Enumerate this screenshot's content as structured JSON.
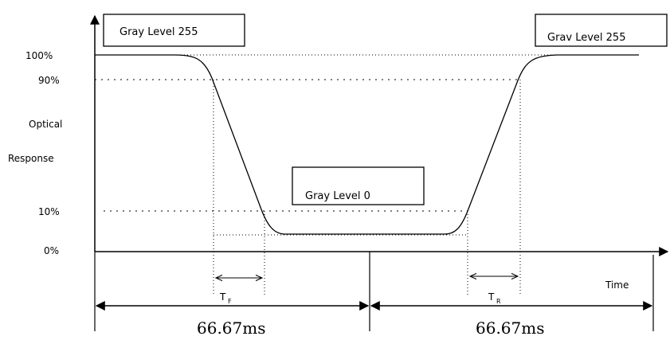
{
  "boxes": {
    "left": "Gray Level 255",
    "middle": "Gray Level 0",
    "right": "Grav Level 255"
  },
  "y_axis": {
    "label_line1": "Optical",
    "label_line2": "Response",
    "ticks": [
      "100%",
      "90%",
      "10%",
      "0%"
    ]
  },
  "x_axis": {
    "label": "Time"
  },
  "intervals": {
    "fall_symbol": "T",
    "fall_sub": "F",
    "rise_symbol": "T",
    "rise_sub": "R",
    "period_left": "66.67ms",
    "period_right": "66.67ms"
  }
}
